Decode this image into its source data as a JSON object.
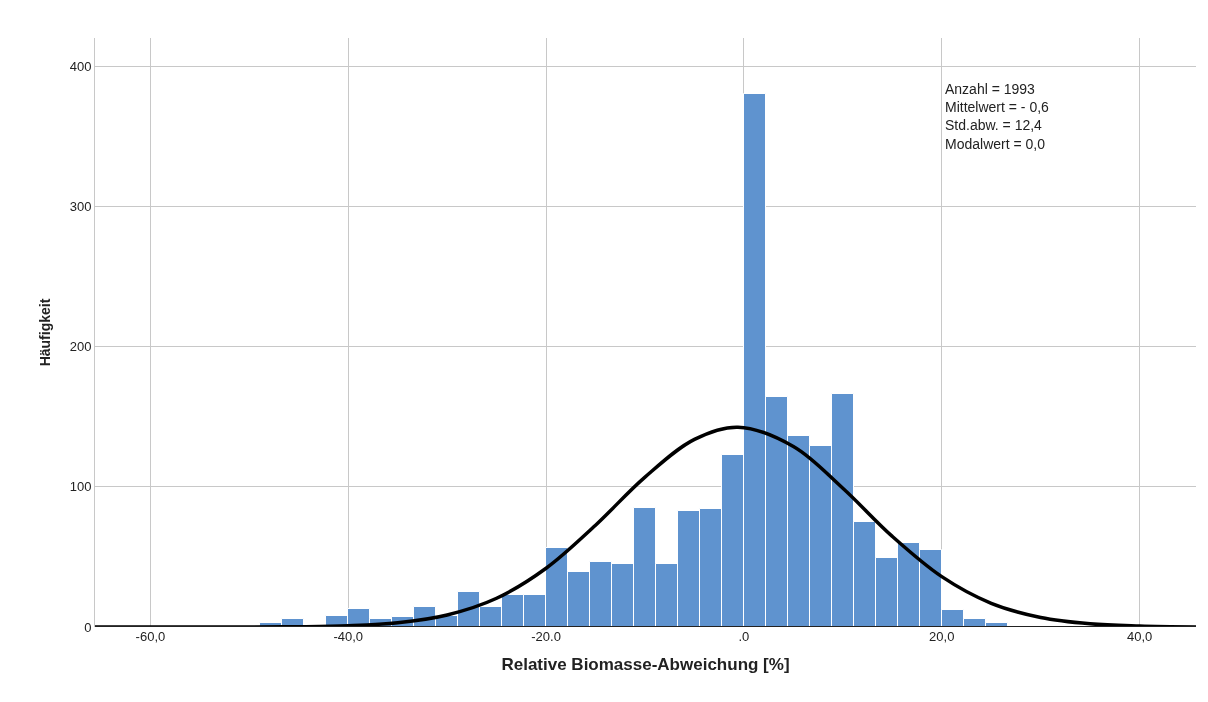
{
  "chart_data": {
    "type": "histogram",
    "xlabel": "Relative Biomasse-Abweichung [%]",
    "ylabel": "Häufigkeit",
    "bins": [
      -48.89,
      -46.67,
      -44.44,
      -42.22,
      -40,
      -37.78,
      -35.56,
      -33.33,
      -31.11,
      -28.89,
      -26.67,
      -24.44,
      -22.22,
      -20,
      -17.78,
      -15.56,
      -13.33,
      -11.11,
      -8.89,
      -6.67,
      -4.44,
      -2.22,
      0,
      2.22,
      4.44,
      6.67,
      8.89,
      11.11,
      13.33,
      15.56,
      17.78,
      20,
      22.22,
      24.44,
      26.67
    ],
    "values": [
      3,
      6,
      0,
      8,
      13,
      6,
      7,
      14,
      8,
      25,
      14,
      23,
      23,
      56,
      39,
      46,
      45,
      85,
      45,
      83,
      84,
      123,
      380,
      164,
      136,
      129,
      166,
      75,
      49,
      60,
      55,
      12,
      6,
      3
    ],
    "color": "#5f93cf",
    "series": [
      {
        "type": "line",
        "color": "#000000",
        "x": [
          -65.6,
          -50,
          -45,
          -40,
          -35,
          -30,
          -25,
          -20,
          -15,
          -10,
          -5,
          -0.6,
          5,
          10,
          15,
          20,
          25,
          30,
          35,
          40,
          45.7
        ],
        "values": [
          0,
          0,
          0.2,
          0.9,
          3,
          8.6,
          20.5,
          41.9,
          72.6,
          106.9,
          133.8,
          142.5,
          128.7,
          98.9,
          64.6,
          35.9,
          16.9,
          6.8,
          2.3,
          0.7,
          0
        ]
      }
    ],
    "xlim": [
      -65.6,
      45.7
    ],
    "ylim": [
      0,
      420
    ],
    "xticks": [
      {
        "value": -60,
        "label": "-60,0"
      },
      {
        "value": -40,
        "label": "-40,0"
      },
      {
        "value": -20,
        "label": "-20.0"
      },
      {
        "value": 0,
        "label": ".0"
      },
      {
        "value": 20,
        "label": "20,0"
      },
      {
        "value": 40,
        "label": "40,0"
      }
    ],
    "yticks": [
      0,
      100,
      200,
      300,
      400
    ],
    "grid": true,
    "annotations": [
      "Anzahl = 1993",
      "Mittelwert = - 0,6",
      "Std.abw. = 12,4",
      "Modalwert = 0,0"
    ]
  }
}
